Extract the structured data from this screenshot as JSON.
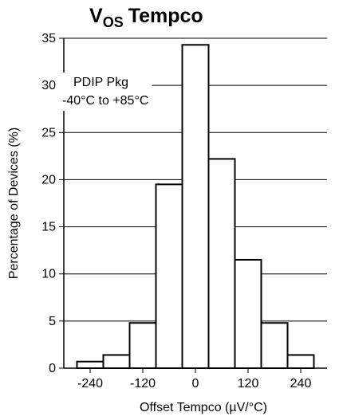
{
  "title": {
    "main": "V",
    "subscript": "OS",
    "rest": "Tempco"
  },
  "chart_data": {
    "type": "bar",
    "title": "VOS Tempco",
    "xlabel": "Offset Tempco (µV/°C)",
    "ylabel": "Percentage of Devices (%)",
    "annotation": [
      "PDIP Pkg",
      "-40°C to +85°C"
    ],
    "xlim": [
      -300,
      300
    ],
    "ylim": [
      0,
      35
    ],
    "grid": "horizontal",
    "x_ticks": [
      -240,
      -120,
      0,
      120,
      240
    ],
    "x_tick_labels": [
      "-240",
      "-120",
      "0",
      "120",
      "240"
    ],
    "y_ticks": [
      0,
      5,
      10,
      15,
      20,
      25,
      30,
      35
    ],
    "y_tick_labels": [
      "0",
      "5",
      "10",
      "15",
      "20",
      "25",
      "30",
      "35"
    ],
    "bin_width": 60,
    "bins": [
      {
        "start": -270,
        "end": -210,
        "value": 0.7
      },
      {
        "start": -210,
        "end": -150,
        "value": 1.4
      },
      {
        "start": -150,
        "end": -90,
        "value": 4.8
      },
      {
        "start": -90,
        "end": -30,
        "value": 19.5
      },
      {
        "start": -30,
        "end": 30,
        "value": 34.3
      },
      {
        "start": 30,
        "end": 90,
        "value": 22.2
      },
      {
        "start": 90,
        "end": 150,
        "value": 11.5
      },
      {
        "start": 150,
        "end": 210,
        "value": 4.8
      },
      {
        "start": 210,
        "end": 270,
        "value": 1.4
      }
    ],
    "colors": {
      "bar_fill": "#ffffff",
      "bar_stroke": "#000000",
      "grid": "#000000"
    }
  }
}
